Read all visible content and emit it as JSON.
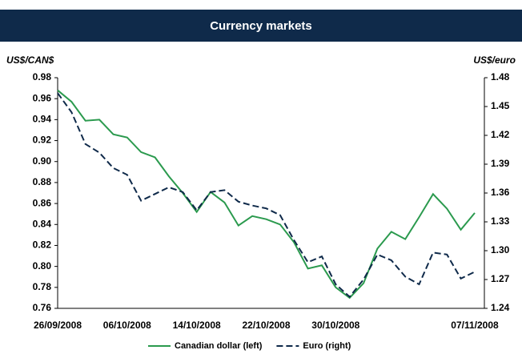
{
  "chart_data": {
    "type": "line",
    "title": "Currency markets",
    "y_label": "US$/CAN$",
    "y2_label": "US$/euro",
    "categories": [
      "26/09/2008",
      null,
      null,
      null,
      null,
      "06/10/2008",
      null,
      null,
      null,
      null,
      "14/10/2008",
      null,
      null,
      null,
      null,
      "22/10/2008",
      null,
      null,
      null,
      null,
      "30/10/2008",
      null,
      null,
      null,
      null,
      null,
      null,
      null,
      null,
      null,
      "07/11/2008"
    ],
    "series": [
      {
        "name": "Canadian dollar (left)",
        "color": "#2b9a4e",
        "dash": false,
        "values": [
          0.968,
          0.957,
          0.939,
          0.94,
          0.926,
          0.923,
          0.909,
          0.904,
          0.886,
          0.87,
          0.852,
          0.871,
          0.861,
          0.839,
          0.848,
          0.845,
          0.84,
          0.823,
          0.798,
          0.801,
          0.78,
          0.77,
          0.784,
          0.817,
          0.833,
          0.826,
          0.847,
          0.869,
          0.855,
          0.835,
          0.851
        ]
      },
      {
        "name": "Euro (right)",
        "color": "#0f2a4a",
        "dash": true,
        "axis": "y2",
        "values": [
          1.464,
          1.444,
          1.411,
          1.402,
          1.386,
          1.379,
          1.352,
          1.359,
          1.366,
          1.361,
          1.342,
          1.361,
          1.363,
          1.351,
          1.347,
          1.344,
          1.337,
          1.311,
          1.288,
          1.294,
          1.265,
          1.252,
          1.27,
          1.296,
          1.29,
          1.273,
          1.265,
          1.298,
          1.296,
          1.271,
          1.278
        ]
      }
    ],
    "ylim": [
      0.76,
      0.98
    ],
    "yticks": [
      0.98,
      0.96,
      0.94,
      0.92,
      {
        "value": 0.9,
        "label": "0.90"
      },
      0.88,
      0.86,
      0.84,
      0.82,
      {
        "value": 0.8,
        "label": "0.80"
      },
      0.78,
      0.76
    ],
    "y2lim": [
      1.24,
      1.48
    ],
    "y2ticks": [
      1.48,
      1.45,
      1.42,
      1.39,
      1.36,
      1.33,
      {
        "value": 1.3,
        "label": "1.30"
      },
      1.27,
      1.24
    ],
    "grid": false,
    "legend": "bottom"
  }
}
